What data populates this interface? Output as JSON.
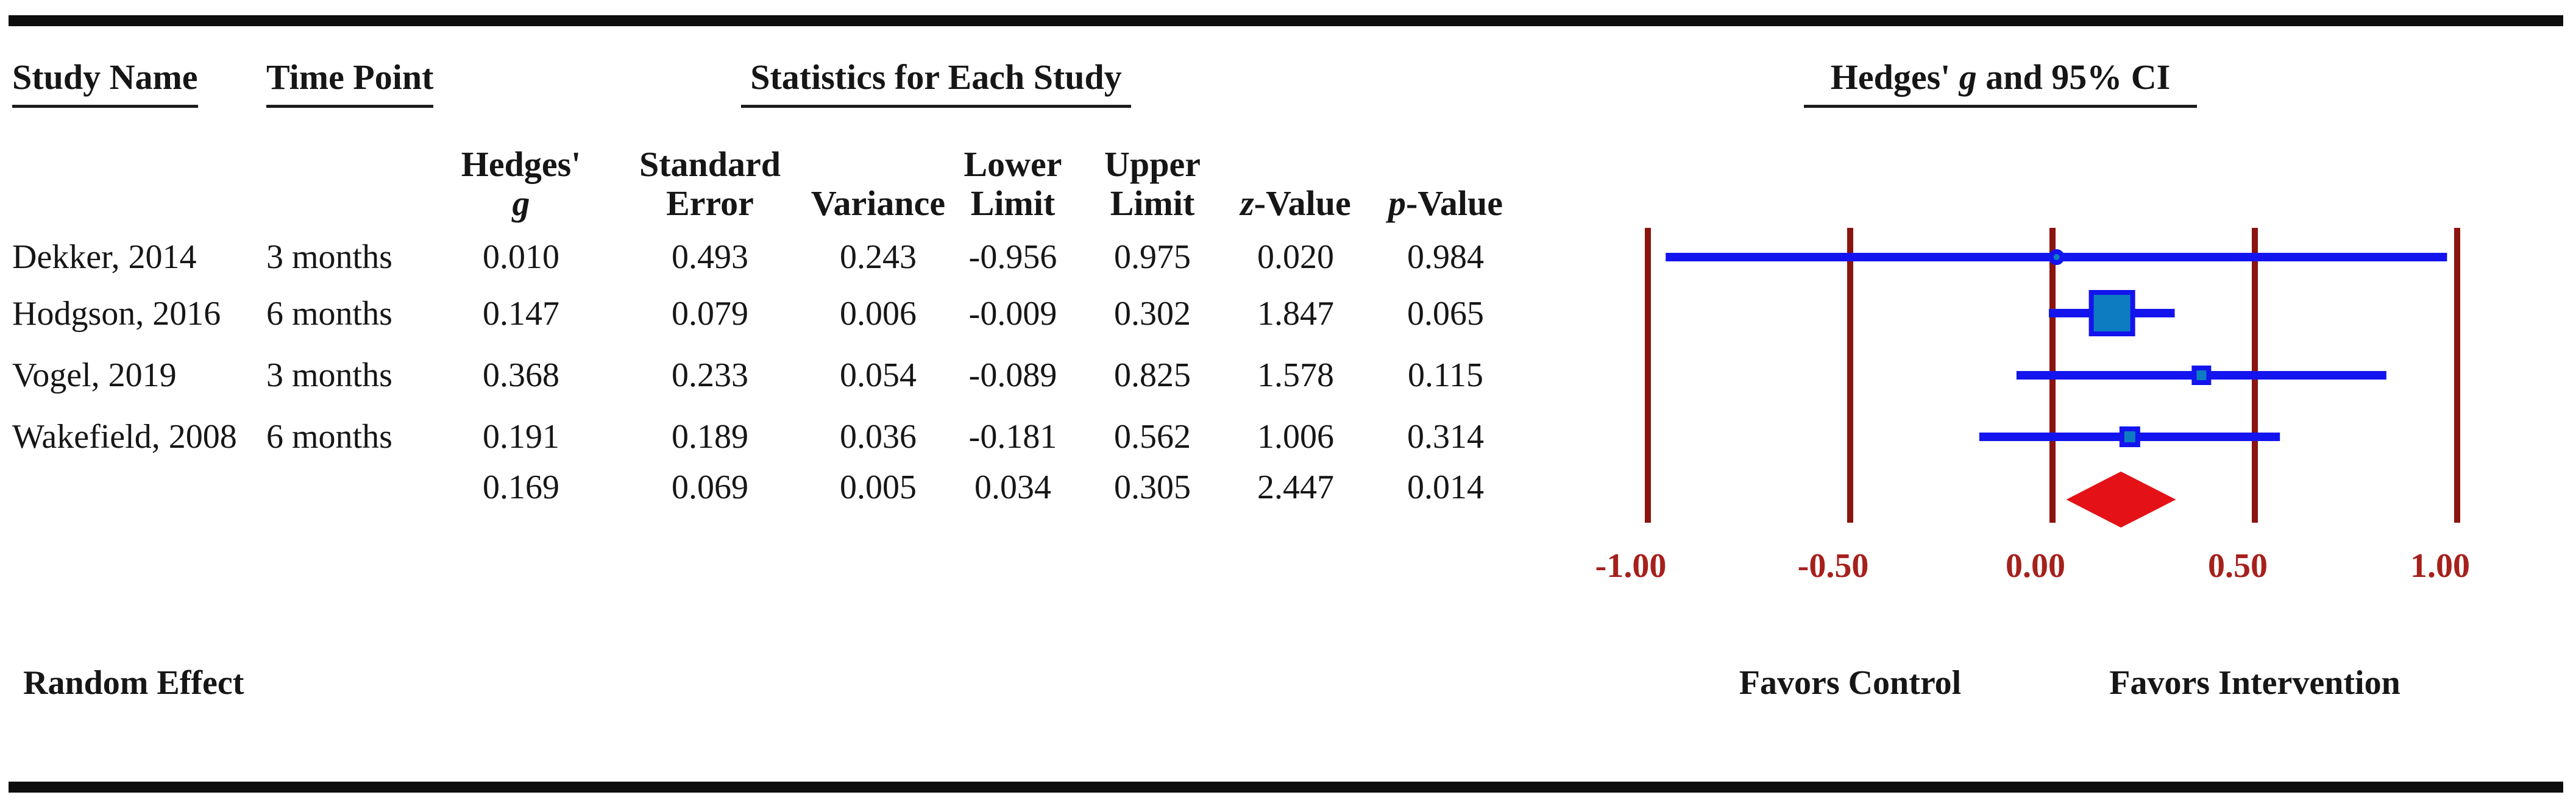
{
  "table": {
    "group_headers": {
      "study": "Study Name",
      "time": "Time Point",
      "stats": "Statistics for Each Study",
      "ci_pre": "Hedges' ",
      "ci_italic": "g",
      "ci_post": " and 95% CI"
    },
    "columns": [
      {
        "line1": "Hedges'",
        "line2": "g"
      },
      {
        "line1": "Standard",
        "line2": "Error"
      },
      {
        "line1": "",
        "line2": "Variance"
      },
      {
        "line1": "Lower",
        "line2": "Limit"
      },
      {
        "line1": "Upper",
        "line2": "Limit"
      },
      {
        "line1": "",
        "line2_pre": "z",
        "line2_rest": "-Value"
      },
      {
        "line1": "",
        "line2_pre": "p",
        "line2_rest": "-Value"
      }
    ],
    "rows": [
      {
        "study": "Dekker, 2014",
        "time": "3 months",
        "g": "0.010",
        "se": "0.493",
        "var": "0.243",
        "ll": "-0.956",
        "ul": "0.975",
        "z": "0.020",
        "p": "0.984"
      },
      {
        "study": "Hodgson, 2016",
        "time": "6 months",
        "g": "0.147",
        "se": "0.079",
        "var": "0.006",
        "ll": "-0.009",
        "ul": "0.302",
        "z": "1.847",
        "p": "0.065"
      },
      {
        "study": "Vogel, 2019",
        "time": "3 months",
        "g": "0.368",
        "se": "0.233",
        "var": "0.054",
        "ll": "-0.089",
        "ul": "0.825",
        "z": "1.578",
        "p": "0.115"
      },
      {
        "study": "Wakefield, 2008",
        "time": "6 months",
        "g": "0.191",
        "se": "0.189",
        "var": "0.036",
        "ll": "-0.181",
        "ul": "0.562",
        "z": "1.006",
        "p": "0.314"
      }
    ],
    "summary": {
      "g": "0.169",
      "se": "0.069",
      "var": "0.005",
      "ll": "0.034",
      "ul": "0.305",
      "z": "2.447",
      "p": "0.014"
    }
  },
  "labels": {
    "model": "Random Effect",
    "favors_left": "Favors Control",
    "favors_right": "Favors Intervention"
  },
  "chart_data": {
    "type": "scatter",
    "variant": "forest-plot",
    "title": "Hedges' g and 95% CI",
    "effect_measure": "Hedges' g",
    "model": "Random Effect",
    "axis": {
      "xlim": [
        -1.0,
        1.0
      ],
      "ticks": [
        -1.0,
        -0.5,
        0.0,
        0.5,
        1.0
      ],
      "tick_labels": [
        "-1.00",
        "-0.50",
        "0.00",
        "0.50",
        "1.00"
      ],
      "left_direction_label": "Favors Control",
      "right_direction_label": "Favors Intervention",
      "gridlines": true
    },
    "studies": [
      {
        "name": "Dekker, 2014",
        "time_point": "3 months",
        "g": 0.01,
        "se": 0.493,
        "variance": 0.243,
        "lower": -0.956,
        "upper": 0.975,
        "z": 0.02,
        "p": 0.984,
        "marker": "circle",
        "marker_px": 26
      },
      {
        "name": "Hodgson, 2016",
        "time_point": "6 months",
        "g": 0.147,
        "se": 0.079,
        "variance": 0.006,
        "lower": -0.009,
        "upper": 0.302,
        "z": 1.847,
        "p": 0.065,
        "marker": "square",
        "marker_px": 76
      },
      {
        "name": "Vogel, 2019",
        "time_point": "3 months",
        "g": 0.368,
        "se": 0.233,
        "variance": 0.054,
        "lower": -0.089,
        "upper": 0.825,
        "z": 1.578,
        "p": 0.115,
        "marker": "square",
        "marker_px": 32
      },
      {
        "name": "Wakefield, 2008",
        "time_point": "6 months",
        "g": 0.191,
        "se": 0.189,
        "variance": 0.036,
        "lower": -0.181,
        "upper": 0.562,
        "z": 1.006,
        "p": 0.314,
        "marker": "square",
        "marker_px": 34
      }
    ],
    "summary": {
      "g": 0.169,
      "se": 0.069,
      "variance": 0.005,
      "lower": 0.034,
      "upper": 0.305,
      "z": 2.447,
      "p": 0.014,
      "shape": "diamond"
    },
    "colors": {
      "gridline": "#8c1410",
      "tick_label": "#a6201c",
      "ci_line": "#1414ee",
      "marker_fill": "#0d7cc1",
      "marker_edge": "#1414ee",
      "diamond": "#e41217",
      "rule": "#0d0d0d"
    }
  }
}
